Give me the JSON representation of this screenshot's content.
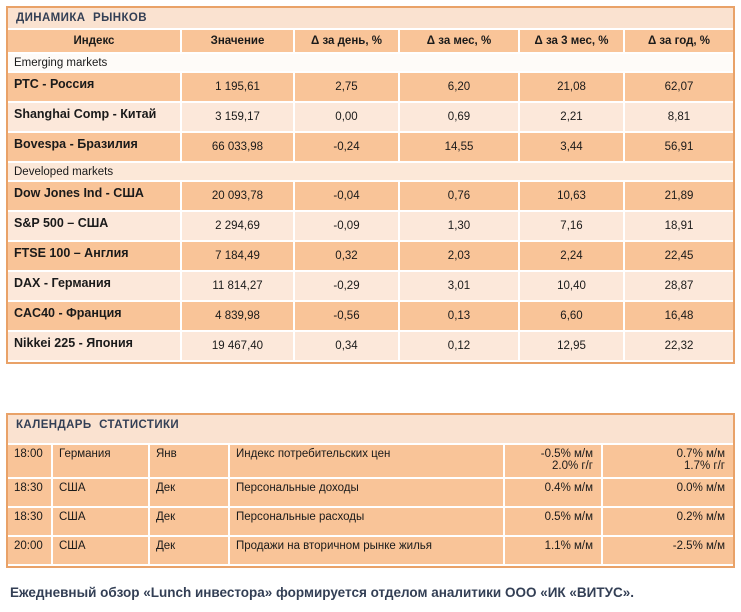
{
  "colors": {
    "panel_border": "#e9a268",
    "title_bar_bg": "#fae2d0",
    "header_row_bg": "#f9c498",
    "row_dark_bg": "#f9c498",
    "row_light_bg": "#fce8da",
    "section_emerging_bg": "#fefbf8",
    "section_developed_bg": "#fce8d8",
    "title_text": "#333f55",
    "body_text": "#1a1a1a",
    "gridline": "#ffffff"
  },
  "market": {
    "title": "ДИНАМИКА РЫНКОВ",
    "columns": [
      "Индекс",
      "Значение",
      "Δ за день, %",
      "Δ за мес, %",
      "Δ за 3 мес, %",
      "Δ за год, %"
    ],
    "sections": [
      {
        "label": "Emerging markets",
        "rows": [
          {
            "index": "РТС - Россия",
            "value": "1 195,61",
            "d_day": "2,75",
            "d_month": "6,20",
            "d_3month": "21,08",
            "d_year": "62,07"
          },
          {
            "index": "Shanghai Comp - Китай",
            "value": "3 159,17",
            "d_day": "0,00",
            "d_month": "0,69",
            "d_3month": "2,21",
            "d_year": "8,81"
          },
          {
            "index": "Bovespa - Бразилия",
            "value": "66 033,98",
            "d_day": "-0,24",
            "d_month": "14,55",
            "d_3month": "3,44",
            "d_year": "56,91"
          }
        ]
      },
      {
        "label": "Developed markets",
        "rows": [
          {
            "index": "Dow Jones Ind - США",
            "value": "20 093,78",
            "d_day": "-0,04",
            "d_month": "0,76",
            "d_3month": "10,63",
            "d_year": "21,89"
          },
          {
            "index": "S&P 500 – США",
            "value": "2 294,69",
            "d_day": "-0,09",
            "d_month": "1,30",
            "d_3month": "7,16",
            "d_year": "18,91"
          },
          {
            "index": "FTSE 100 – Англия",
            "value": "7 184,49",
            "d_day": "0,32",
            "d_month": "2,03",
            "d_3month": "2,24",
            "d_year": "22,45"
          },
          {
            "index": "DAX - Германия",
            "value": "11 814,27",
            "d_day": "-0,29",
            "d_month": "3,01",
            "d_3month": "10,40",
            "d_year": "28,87"
          },
          {
            "index": "CAC40 - Франция",
            "value": "4 839,98",
            "d_day": "-0,56",
            "d_month": "0,13",
            "d_3month": "6,60",
            "d_year": "16,48"
          },
          {
            "index": "Nikkei 225 - Япония",
            "value": "19 467,40",
            "d_day": "0,34",
            "d_month": "0,12",
            "d_3month": "12,95",
            "d_year": "22,32"
          }
        ]
      }
    ]
  },
  "calendar": {
    "title": "КАЛЕНДАРЬ СТАТИСТИКИ",
    "rows": [
      {
        "time": "18:00",
        "country": "Германия",
        "period": "Янв",
        "event": "Индекс потребительских цен",
        "value1_lines": [
          "-0.5% м/м",
          "2.0% г/г"
        ],
        "value2_lines": [
          "0.7% м/м",
          "1.7% г/г"
        ]
      },
      {
        "time": "18:30",
        "country": "США",
        "period": "Дек",
        "event": "Персональные доходы",
        "value1_lines": [
          "0.4% м/м"
        ],
        "value2_lines": [
          "0.0% м/м"
        ]
      },
      {
        "time": "18:30",
        "country": "США",
        "period": "Дек",
        "event": "Персональные расходы",
        "value1_lines": [
          "0.5% м/м"
        ],
        "value2_lines": [
          "0.2% м/м"
        ]
      },
      {
        "time": "20:00",
        "country": "США",
        "period": "Дек",
        "event": "Продажи на вторичном рынке жилья",
        "value1_lines": [
          "1.1% м/м"
        ],
        "value2_lines": [
          "-2.5% м/м"
        ]
      }
    ]
  },
  "footer": {
    "text": "Ежедневный обзор «Lunch инвестора» формируется отделом аналитики ООО «ИК «ВИТУС»."
  }
}
